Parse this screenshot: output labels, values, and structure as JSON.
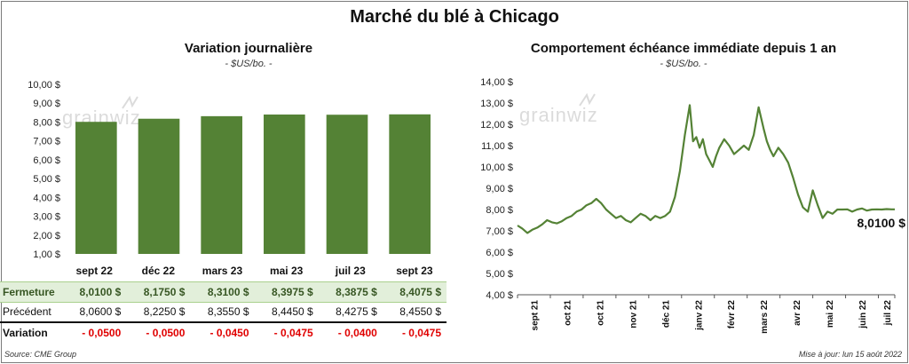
{
  "title": "Marché du blé à Chicago",
  "chart_data": [
    {
      "type": "bar",
      "title": "Variation journalière",
      "subtitle": "- $US/bo. -",
      "categories": [
        "sept 22",
        "déc 22",
        "mars 23",
        "mai 23",
        "juil 23",
        "sept 23"
      ],
      "values": [
        8.01,
        8.175,
        8.31,
        8.3975,
        8.3875,
        8.4075
      ],
      "ylim": [
        1,
        10
      ],
      "yticks": [
        "1,00 $",
        "2,00 $",
        "3,00 $",
        "4,00 $",
        "5,00 $",
        "6,00 $",
        "7,00 $",
        "8,00 $",
        "9,00 $",
        "10,00 $"
      ],
      "bar_color": "#548235",
      "grid": false,
      "watermark": "grainwiz"
    },
    {
      "type": "line",
      "title": "Comportement  échéance immédiate depuis 1 an",
      "subtitle": "- $US/bo. -",
      "ylim": [
        4,
        14
      ],
      "yticks": [
        "4,00 $",
        "5,00 $",
        "6,00 $",
        "7,00 $",
        "8,00 $",
        "9,00 $",
        "10,00 $",
        "11,00 $",
        "12,00 $",
        "13,00 $",
        "14,00 $"
      ],
      "xticks": [
        "sept 21",
        "oct 21",
        "nov 21",
        "déc 21",
        "janv 22",
        "févr 22",
        "mars 22",
        "avr 22",
        "mai 22",
        "juin 22",
        "juil 22"
      ],
      "xticks_label_order": [
        "sept 21",
        "oct 21",
        "oct 21",
        "nov 21",
        "déc 21",
        "janv 22",
        "févr 22",
        "mars 22",
        "avr 22",
        "mai 22",
        "juin 22",
        "juil 22"
      ],
      "x_months": [
        0,
        1,
        2,
        3,
        4,
        5,
        6,
        7,
        8,
        9,
        10,
        11,
        11.5
      ],
      "series": [
        {
          "x": [
            0,
            0.15,
            0.3,
            0.45,
            0.6,
            0.75,
            0.9,
            1.05,
            1.2,
            1.35,
            1.5,
            1.65,
            1.8,
            1.95,
            2.1,
            2.25,
            2.4,
            2.55,
            2.7,
            2.85,
            3.0,
            3.15,
            3.3,
            3.45,
            3.6,
            3.75,
            3.9,
            4.05,
            4.2,
            4.35,
            4.5,
            4.65,
            4.8,
            4.95,
            5.1,
            5.25,
            5.35,
            5.45,
            5.55,
            5.65,
            5.75,
            5.85,
            5.95,
            6.05,
            6.15,
            6.3,
            6.45,
            6.6,
            6.75,
            6.9,
            7.05,
            7.2,
            7.35,
            7.5,
            7.6,
            7.7,
            7.8,
            7.95,
            8.1,
            8.25,
            8.4,
            8.55,
            8.7,
            8.85,
            9.0,
            9.15,
            9.3,
            9.45,
            9.6,
            9.75,
            9.9,
            10.05,
            10.2,
            10.35,
            10.5,
            10.65,
            10.8,
            10.95,
            11.1,
            11.25,
            11.4,
            11.5
          ],
          "y": [
            7.25,
            7.1,
            6.9,
            7.05,
            7.15,
            7.3,
            7.5,
            7.4,
            7.35,
            7.45,
            7.6,
            7.7,
            7.9,
            8.0,
            8.2,
            8.3,
            8.5,
            8.3,
            8.0,
            7.8,
            7.6,
            7.7,
            7.5,
            7.4,
            7.6,
            7.8,
            7.7,
            7.5,
            7.7,
            7.6,
            7.7,
            7.9,
            8.6,
            9.8,
            11.5,
            12.9,
            11.2,
            11.4,
            10.9,
            11.3,
            10.6,
            10.3,
            10.0,
            10.5,
            10.9,
            11.3,
            11.0,
            10.6,
            10.8,
            11.0,
            10.8,
            11.5,
            12.8,
            11.8,
            11.2,
            10.8,
            10.5,
            10.9,
            10.6,
            10.2,
            9.5,
            8.7,
            8.1,
            7.9,
            8.9,
            8.2,
            7.6,
            7.9,
            7.8,
            8.0,
            8.0,
            8.01,
            7.9,
            8.0,
            8.05,
            7.95,
            8.0,
            8.01,
            8.0,
            8.02,
            8.01,
            8.01
          ]
        }
      ],
      "last_value_label": "8,0100 $",
      "line_color": "#548235",
      "grid": false,
      "watermark": "grainwiz"
    }
  ],
  "table": {
    "rows": [
      {
        "label": "Fermeture",
        "values": [
          "8,0100  $",
          "8,1750  $",
          "8,3100  $",
          "8,3975  $",
          "8,3875  $",
          "8,4075  $"
        ]
      },
      {
        "label": "Précédent",
        "values": [
          "8,0600  $",
          "8,2250  $",
          "8,3550  $",
          "8,4450  $",
          "8,4275  $",
          "8,4550  $"
        ]
      },
      {
        "label": "Variation",
        "values": [
          "- 0,0500",
          "- 0,0500",
          "- 0,0450",
          "- 0,0475",
          "- 0,0400",
          "- 0,0475"
        ]
      }
    ]
  },
  "footer": {
    "source": "Source: CME Group",
    "updated": "Mise à jour: lun 15 août 2022"
  }
}
